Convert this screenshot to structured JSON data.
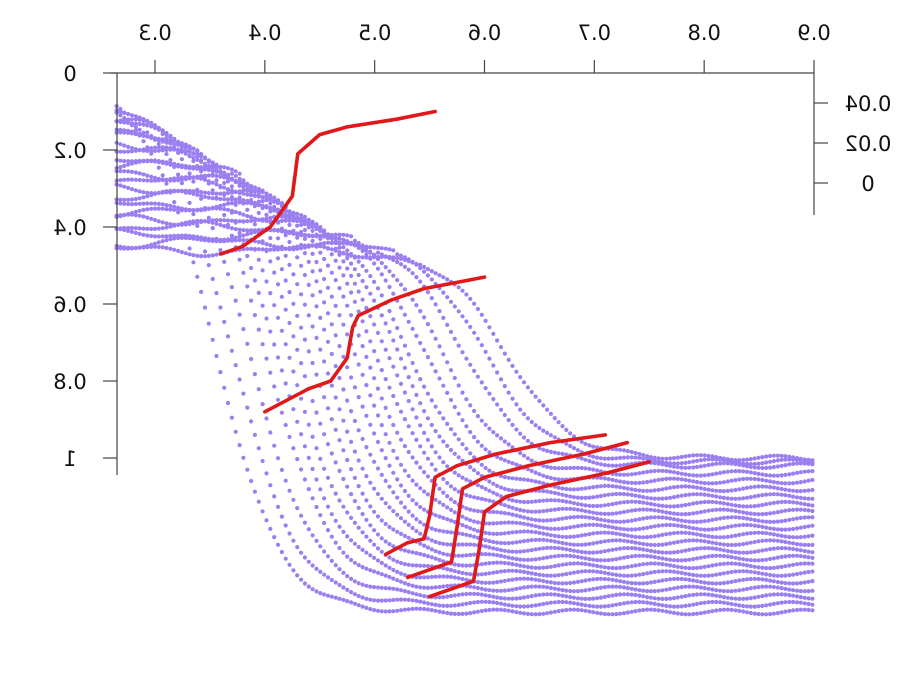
{
  "chart_data": {
    "type": "scatter",
    "title": "",
    "xlabel": "",
    "ylabel": "",
    "mirrored_render": true,
    "x_axis": {
      "position": "top",
      "range": [
        0.26,
        0.9
      ],
      "ticks": [
        0.3,
        0.4,
        0.5,
        0.6,
        0.7,
        0.8,
        0.9
      ],
      "tick_labels": [
        "0.3",
        "0.4",
        "0.5",
        "0.6",
        "0.7",
        "0.8",
        "0.9"
      ]
    },
    "y_axis": {
      "position": "left",
      "range": [
        0,
        1.05
      ],
      "inverted": true,
      "ticks": [
        0,
        0.2,
        0.4,
        0.6,
        0.8,
        1
      ],
      "tick_labels": [
        "0",
        "0.2",
        "0.4",
        "0.6",
        "0.8",
        "1"
      ]
    },
    "y2_axis": {
      "position": "right",
      "ticks": [
        0,
        0.02,
        0.04
      ],
      "tick_labels": [
        "0",
        "0.02",
        "0.04"
      ]
    },
    "grid": false,
    "legend": "none",
    "colors": {
      "points": "#9b7ff0",
      "lines": "#e01818",
      "axes": "#444444",
      "text": "#111111"
    },
    "series_points": {
      "count": 22,
      "marker": "dot",
      "color": "#9b7ff0",
      "shape": "sigmoid transition from upper plateau to lower plateau",
      "upper_plateau_start_values": [
        0.04,
        0.06,
        0.08,
        0.1,
        0.12,
        0.14,
        0.16,
        0.18,
        0.2,
        0.22,
        0.24,
        0.26,
        0.28,
        0.3,
        0.32,
        0.34,
        0.36,
        0.38,
        0.4,
        0.42,
        0.44,
        0.46
      ],
      "transition_x_centres": [
        0.355,
        0.37,
        0.385,
        0.4,
        0.41,
        0.42,
        0.43,
        0.44,
        0.45,
        0.46,
        0.47,
        0.48,
        0.49,
        0.5,
        0.51,
        0.52,
        0.53,
        0.545,
        0.56,
        0.58,
        0.6,
        0.62
      ],
      "lower_plateau_end_values": [
        1.4,
        1.38,
        1.36,
        1.34,
        1.32,
        1.3,
        1.28,
        1.26,
        1.24,
        1.22,
        1.2,
        1.18,
        1.16,
        1.14,
        1.12,
        1.1,
        1.08,
        1.06,
        1.04,
        1.02,
        1.01,
        1.0
      ]
    },
    "red_lines": [
      {
        "name": "",
        "points": [
          [
            0.36,
            0.47
          ],
          [
            0.38,
            0.45
          ],
          [
            0.405,
            0.4
          ],
          [
            0.425,
            0.32
          ],
          [
            0.43,
            0.21
          ],
          [
            0.45,
            0.16
          ],
          [
            0.475,
            0.14
          ],
          [
            0.52,
            0.12
          ],
          [
            0.555,
            0.1
          ]
        ]
      },
      {
        "name": "",
        "points": [
          [
            0.4,
            0.88
          ],
          [
            0.44,
            0.82
          ],
          [
            0.46,
            0.8
          ],
          [
            0.475,
            0.74
          ],
          [
            0.48,
            0.66
          ],
          [
            0.485,
            0.63
          ],
          [
            0.515,
            0.59
          ],
          [
            0.545,
            0.56
          ],
          [
            0.6,
            0.53
          ]
        ]
      },
      {
        "name": "",
        "points": [
          [
            0.51,
            1.25
          ],
          [
            0.53,
            1.22
          ],
          [
            0.545,
            1.21
          ],
          [
            0.55,
            1.15
          ],
          [
            0.555,
            1.05
          ],
          [
            0.575,
            1.02
          ],
          [
            0.61,
            0.99
          ],
          [
            0.66,
            0.96
          ],
          [
            0.71,
            0.94
          ]
        ]
      },
      {
        "name": "",
        "points": [
          [
            0.53,
            1.31
          ],
          [
            0.55,
            1.29
          ],
          [
            0.57,
            1.27
          ],
          [
            0.575,
            1.18
          ],
          [
            0.58,
            1.08
          ],
          [
            0.6,
            1.05
          ],
          [
            0.64,
            1.02
          ],
          [
            0.69,
            0.99
          ],
          [
            0.73,
            0.96
          ]
        ]
      },
      {
        "name": "",
        "points": [
          [
            0.55,
            1.36
          ],
          [
            0.57,
            1.34
          ],
          [
            0.59,
            1.32
          ],
          [
            0.595,
            1.24
          ],
          [
            0.6,
            1.14
          ],
          [
            0.62,
            1.1
          ],
          [
            0.66,
            1.07
          ],
          [
            0.71,
            1.04
          ],
          [
            0.75,
            1.01
          ]
        ]
      }
    ]
  }
}
